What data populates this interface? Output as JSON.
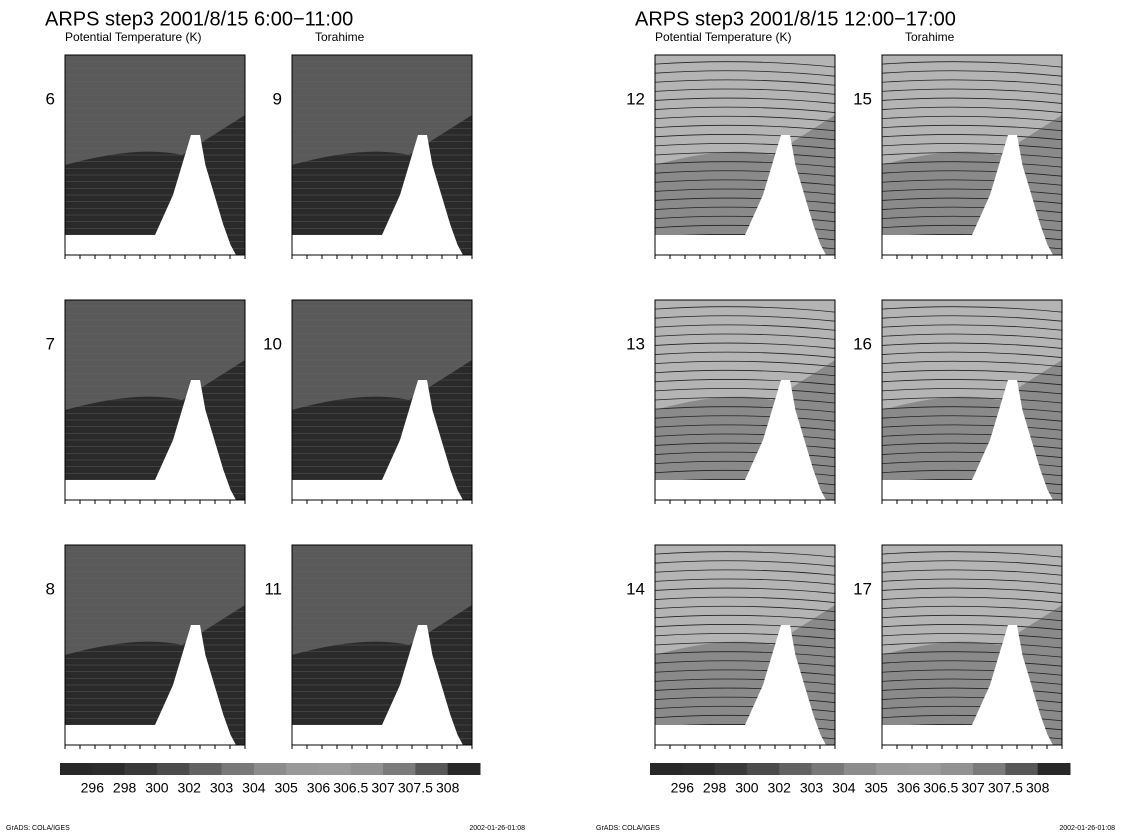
{
  "figures": [
    {
      "title": "ARPS step3 2001/8/15 6:00−11:00",
      "left_label": "Potential Temperature (K)",
      "right_label": "Torahime",
      "panels": [
        "6",
        "7",
        "8",
        "9",
        "10",
        "11"
      ],
      "colorbar": [
        "296",
        "298",
        "300",
        "302",
        "303",
        "304",
        "305",
        "306",
        "306.5",
        "307",
        "307.5",
        "308"
      ],
      "footer_left": "GrADS: COLA/IGES",
      "footer_right": "2002-01-26-01:08"
    },
    {
      "title": "ARPS step3 2001/8/15 12:00−17:00",
      "left_label": "Potential Temperature (K)",
      "right_label": "Torahime",
      "panels": [
        "12",
        "13",
        "14",
        "15",
        "16",
        "17"
      ],
      "colorbar": [
        "296",
        "298",
        "300",
        "302",
        "303",
        "304",
        "305",
        "306",
        "306.5",
        "307",
        "307.5",
        "308"
      ],
      "footer_left": "GrADS: COLA/IGES",
      "footer_right": "2002-01-26-01:08"
    }
  ]
}
